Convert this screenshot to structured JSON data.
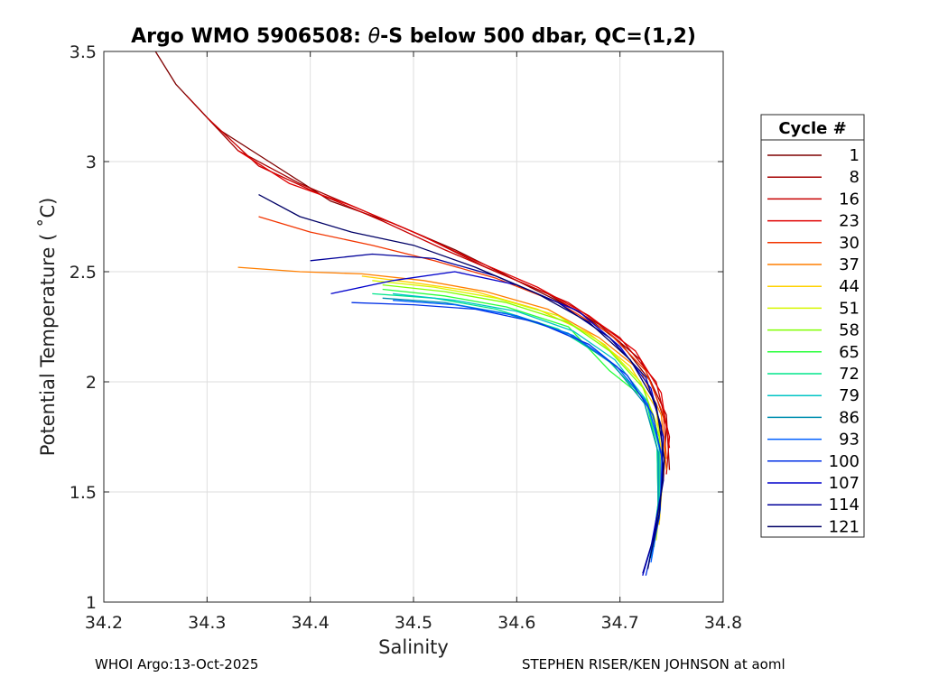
{
  "chart_data": {
    "type": "line",
    "title_prefix": "Argo WMO 5906508: ",
    "title_theta": "θ",
    "title_suffix": "-S below 500 dbar,  QC=(1,2)",
    "xlabel": "Salinity",
    "ylabel": "Potential Temperature ( ˚C)",
    "xlim": [
      34.2,
      34.8
    ],
    "ylim": [
      1,
      3.5
    ],
    "xticks": [
      34.2,
      34.3,
      34.4,
      34.5,
      34.6,
      34.7,
      34.8
    ],
    "xtick_labels": [
      "34.2",
      "34.3",
      "34.4",
      "34.5",
      "34.6",
      "34.7",
      "34.8"
    ],
    "yticks": [
      1,
      1.5,
      2,
      2.5,
      3,
      3.5
    ],
    "ytick_labels": [
      "1",
      "1.5",
      "2",
      "2.5",
      "3",
      "3.5"
    ],
    "grid": true,
    "legend_position": "right",
    "legend_title": "Cycle #",
    "series": [
      {
        "name": "1",
        "color": "#7f0000",
        "points": [
          [
            34.25,
            3.5
          ],
          [
            34.27,
            3.35
          ],
          [
            34.31,
            3.15
          ],
          [
            34.36,
            3.0
          ],
          [
            34.42,
            2.82
          ],
          [
            34.48,
            2.72
          ],
          [
            34.54,
            2.6
          ],
          [
            34.6,
            2.46
          ],
          [
            34.66,
            2.32
          ],
          [
            34.7,
            2.18
          ],
          [
            34.73,
            2.0
          ],
          [
            34.745,
            1.8
          ],
          [
            34.742,
            1.55
          ]
        ]
      },
      {
        "name": "8",
        "color": "#a40000",
        "points": [
          [
            34.28,
            3.3
          ],
          [
            34.33,
            3.05
          ],
          [
            34.39,
            2.9
          ],
          [
            34.45,
            2.78
          ],
          [
            34.51,
            2.66
          ],
          [
            34.57,
            2.52
          ],
          [
            34.63,
            2.4
          ],
          [
            34.68,
            2.26
          ],
          [
            34.72,
            2.1
          ],
          [
            34.745,
            1.85
          ],
          [
            34.748,
            1.6
          ]
        ]
      },
      {
        "name": "16",
        "color": "#c70000",
        "points": [
          [
            34.3,
            3.2
          ],
          [
            34.35,
            2.98
          ],
          [
            34.41,
            2.85
          ],
          [
            34.47,
            2.73
          ],
          [
            34.53,
            2.6
          ],
          [
            34.59,
            2.48
          ],
          [
            34.65,
            2.36
          ],
          [
            34.7,
            2.2
          ],
          [
            34.735,
            2.0
          ],
          [
            34.748,
            1.75
          ],
          [
            34.745,
            1.58
          ]
        ]
      },
      {
        "name": "23",
        "color": "#e00000",
        "points": [
          [
            34.33,
            3.05
          ],
          [
            34.38,
            2.9
          ],
          [
            34.44,
            2.8
          ],
          [
            34.5,
            2.68
          ],
          [
            34.56,
            2.55
          ],
          [
            34.62,
            2.43
          ],
          [
            34.67,
            2.3
          ],
          [
            34.715,
            2.14
          ],
          [
            34.74,
            1.95
          ],
          [
            34.748,
            1.7
          ]
        ]
      },
      {
        "name": "30",
        "color": "#f23500",
        "points": [
          [
            34.35,
            2.75
          ],
          [
            34.4,
            2.68
          ],
          [
            34.46,
            2.62
          ],
          [
            34.52,
            2.55
          ],
          [
            34.58,
            2.47
          ],
          [
            34.64,
            2.36
          ],
          [
            34.69,
            2.22
          ],
          [
            34.725,
            2.05
          ],
          [
            34.742,
            1.85
          ],
          [
            34.745,
            1.65
          ]
        ]
      },
      {
        "name": "37",
        "color": "#ff7f00",
        "points": [
          [
            34.33,
            2.52
          ],
          [
            34.39,
            2.5
          ],
          [
            34.45,
            2.49
          ],
          [
            34.51,
            2.46
          ],
          [
            34.57,
            2.41
          ],
          [
            34.63,
            2.33
          ],
          [
            34.68,
            2.2
          ],
          [
            34.72,
            2.05
          ],
          [
            34.74,
            1.85
          ],
          [
            34.745,
            1.6
          ]
        ]
      },
      {
        "name": "44",
        "color": "#ffd200",
        "points": [
          [
            34.45,
            2.48
          ],
          [
            34.5,
            2.45
          ],
          [
            34.56,
            2.41
          ],
          [
            34.62,
            2.33
          ],
          [
            34.67,
            2.22
          ],
          [
            34.71,
            2.07
          ],
          [
            34.735,
            1.88
          ],
          [
            34.742,
            1.6
          ],
          [
            34.738,
            1.35
          ]
        ]
      },
      {
        "name": "51",
        "color": "#d7f700",
        "points": [
          [
            34.46,
            2.46
          ],
          [
            34.52,
            2.43
          ],
          [
            34.58,
            2.38
          ],
          [
            34.64,
            2.3
          ],
          [
            34.685,
            2.17
          ],
          [
            34.72,
            2.0
          ],
          [
            34.738,
            1.78
          ],
          [
            34.74,
            1.5
          ],
          [
            34.735,
            1.28
          ]
        ]
      },
      {
        "name": "58",
        "color": "#7fff00",
        "points": [
          [
            34.47,
            2.44
          ],
          [
            34.53,
            2.41
          ],
          [
            34.59,
            2.36
          ],
          [
            34.65,
            2.27
          ],
          [
            34.69,
            2.14
          ],
          [
            34.723,
            1.97
          ],
          [
            34.738,
            1.75
          ],
          [
            34.739,
            1.5
          ],
          [
            34.733,
            1.25
          ]
        ]
      },
      {
        "name": "65",
        "color": "#28ff3a",
        "points": [
          [
            34.47,
            2.42
          ],
          [
            34.53,
            2.39
          ],
          [
            34.59,
            2.34
          ],
          [
            34.65,
            2.25
          ],
          [
            34.69,
            2.05
          ],
          [
            34.725,
            1.92
          ],
          [
            34.736,
            1.7
          ],
          [
            34.737,
            1.45
          ],
          [
            34.731,
            1.22
          ]
        ]
      },
      {
        "name": "72",
        "color": "#00e58c",
        "points": [
          [
            34.46,
            2.4
          ],
          [
            34.52,
            2.38
          ],
          [
            34.58,
            2.33
          ],
          [
            34.64,
            2.24
          ],
          [
            34.688,
            2.1
          ],
          [
            34.722,
            1.93
          ],
          [
            34.736,
            1.7
          ],
          [
            34.737,
            1.45
          ],
          [
            34.73,
            1.2
          ]
        ]
      },
      {
        "name": "79",
        "color": "#00c4c4",
        "points": [
          [
            34.48,
            2.4
          ],
          [
            34.54,
            2.37
          ],
          [
            34.6,
            2.32
          ],
          [
            34.655,
            2.23
          ],
          [
            34.695,
            2.1
          ],
          [
            34.725,
            1.92
          ],
          [
            34.738,
            1.7
          ],
          [
            34.738,
            1.45
          ],
          [
            34.73,
            1.2
          ]
        ]
      },
      {
        "name": "86",
        "color": "#008fb0",
        "points": [
          [
            34.47,
            2.38
          ],
          [
            34.53,
            2.36
          ],
          [
            34.59,
            2.31
          ],
          [
            34.65,
            2.22
          ],
          [
            34.693,
            2.08
          ],
          [
            34.724,
            1.9
          ],
          [
            34.737,
            1.68
          ],
          [
            34.737,
            1.42
          ],
          [
            34.728,
            1.18
          ]
        ]
      },
      {
        "name": "93",
        "color": "#0060ff",
        "points": [
          [
            34.48,
            2.37
          ],
          [
            34.54,
            2.35
          ],
          [
            34.6,
            2.3
          ],
          [
            34.655,
            2.21
          ],
          [
            34.697,
            2.07
          ],
          [
            34.727,
            1.9
          ],
          [
            34.74,
            1.68
          ],
          [
            34.739,
            1.42
          ],
          [
            34.73,
            1.18
          ]
        ]
      },
      {
        "name": "100",
        "color": "#0030e6",
        "points": [
          [
            34.44,
            2.36
          ],
          [
            34.5,
            2.35
          ],
          [
            34.56,
            2.33
          ],
          [
            34.62,
            2.27
          ],
          [
            34.67,
            2.17
          ],
          [
            34.707,
            2.03
          ],
          [
            34.732,
            1.85
          ],
          [
            34.742,
            1.62
          ],
          [
            34.738,
            1.38
          ],
          [
            34.725,
            1.12
          ]
        ]
      },
      {
        "name": "107",
        "color": "#0000cc",
        "points": [
          [
            34.42,
            2.4
          ],
          [
            34.48,
            2.46
          ],
          [
            34.54,
            2.5
          ],
          [
            34.6,
            2.44
          ],
          [
            34.66,
            2.32
          ],
          [
            34.7,
            2.16
          ],
          [
            34.73,
            1.97
          ],
          [
            34.742,
            1.75
          ],
          [
            34.74,
            1.5
          ],
          [
            34.73,
            1.25
          ],
          [
            34.722,
            1.12
          ]
        ]
      },
      {
        "name": "114",
        "color": "#000099",
        "points": [
          [
            34.4,
            2.55
          ],
          [
            34.46,
            2.58
          ],
          [
            34.52,
            2.56
          ],
          [
            34.58,
            2.48
          ],
          [
            34.64,
            2.36
          ],
          [
            34.69,
            2.2
          ],
          [
            34.725,
            2.02
          ],
          [
            34.74,
            1.8
          ],
          [
            34.742,
            1.55
          ],
          [
            34.733,
            1.3
          ],
          [
            34.722,
            1.13
          ]
        ]
      },
      {
        "name": "121",
        "color": "#000066",
        "points": [
          [
            34.35,
            2.85
          ],
          [
            34.39,
            2.75
          ],
          [
            34.44,
            2.68
          ],
          [
            34.5,
            2.62
          ],
          [
            34.56,
            2.52
          ],
          [
            34.62,
            2.4
          ],
          [
            34.67,
            2.27
          ],
          [
            34.71,
            2.1
          ],
          [
            34.735,
            1.9
          ],
          [
            34.743,
            1.65
          ],
          [
            34.738,
            1.4
          ],
          [
            34.727,
            1.15
          ]
        ]
      }
    ]
  },
  "footer": {
    "left": "WHOI Argo:13-Oct-2025",
    "right": "STEPHEN RISER/KEN JOHNSON at aoml"
  }
}
